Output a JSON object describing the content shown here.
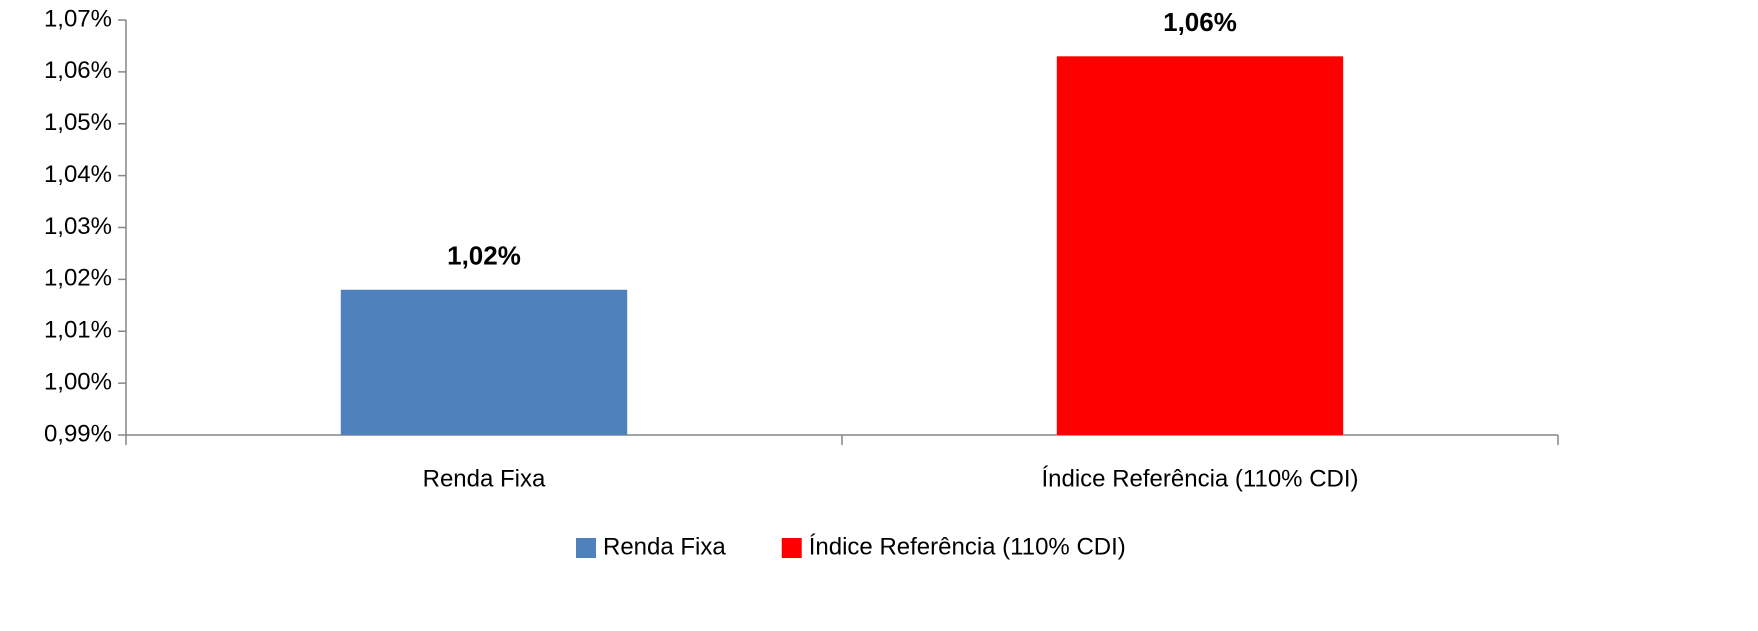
{
  "chart_data": {
    "type": "bar",
    "categories": [
      "Renda Fixa",
      "Índice Referência (110% CDI)"
    ],
    "values": [
      1.018,
      1.063
    ],
    "value_labels": [
      "1,02%",
      "1,06%"
    ],
    "colors": [
      "#4f81bd",
      "#ff0000"
    ],
    "ylim": [
      0.99,
      1.07
    ],
    "yticks": [
      {
        "value": 0.99,
        "label": "0,99%"
      },
      {
        "value": 1.0,
        "label": "1,00%"
      },
      {
        "value": 1.01,
        "label": "1,01%"
      },
      {
        "value": 1.02,
        "label": "1,02%"
      },
      {
        "value": 1.03,
        "label": "1,03%"
      },
      {
        "value": 1.04,
        "label": "1,04%"
      },
      {
        "value": 1.05,
        "label": "1,05%"
      },
      {
        "value": 1.06,
        "label": "1,06%"
      },
      {
        "value": 1.07,
        "label": "1,07%"
      }
    ],
    "grid": false,
    "legend": "bottom"
  }
}
